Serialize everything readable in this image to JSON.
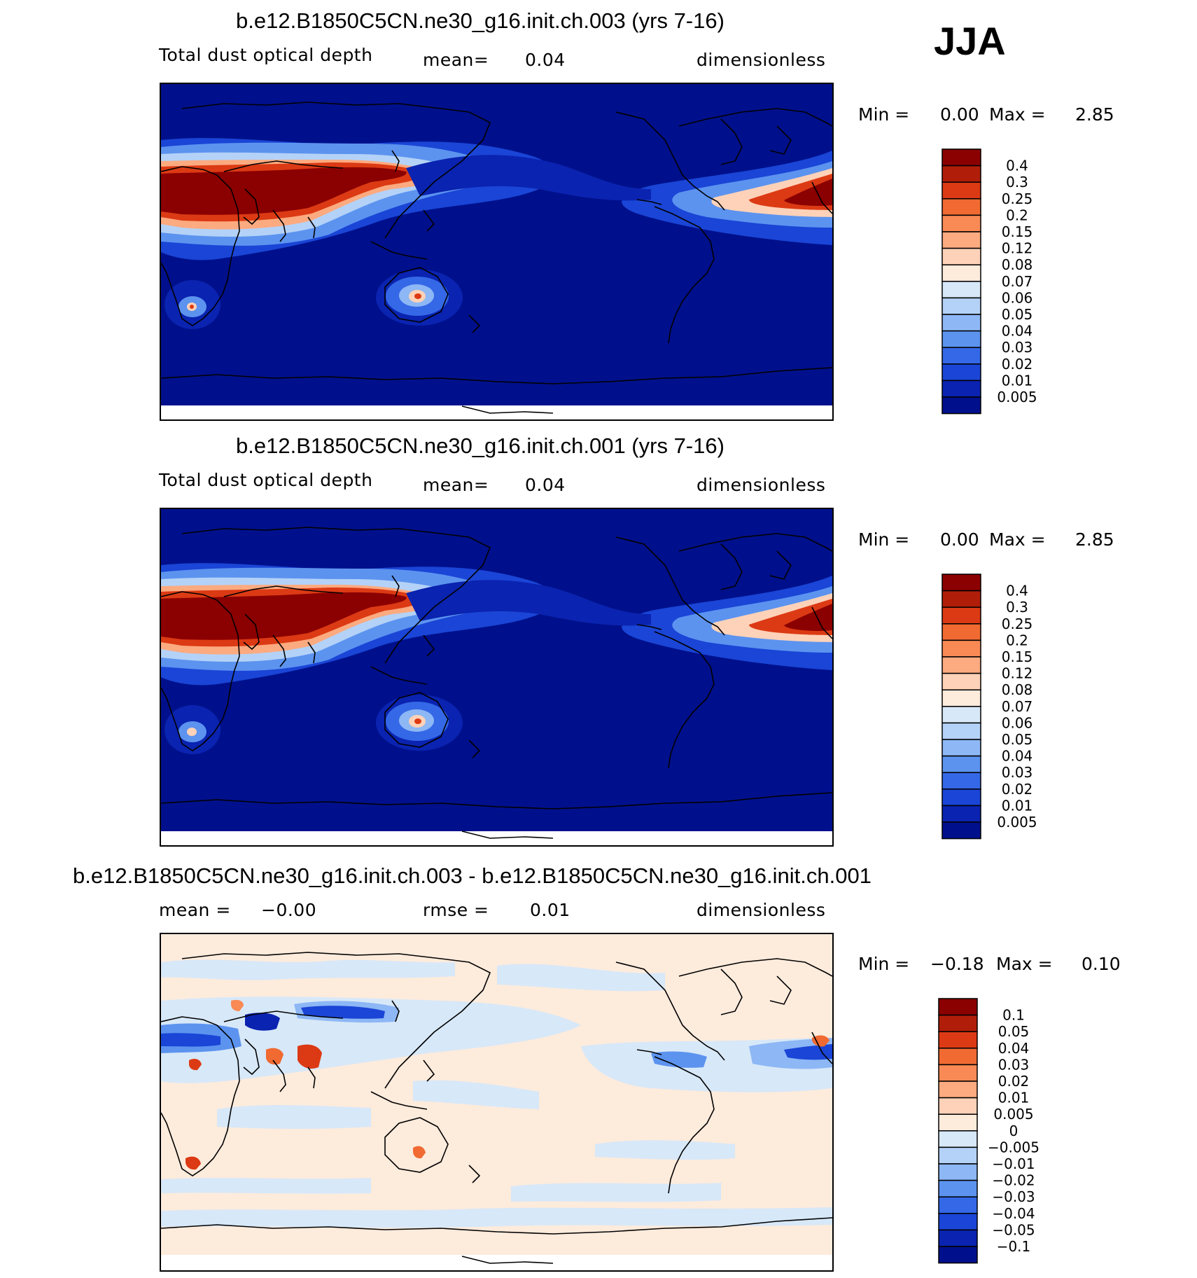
{
  "season": "JJA",
  "panels": [
    {
      "id": "case",
      "title": "b.e12.B1850C5CN.ne30_g16.init.ch.003 (yrs 7-16)",
      "variable": "Total dust optical depth",
      "stat_label": "mean=",
      "stat_value": "0.04",
      "units": "dimensionless",
      "min_label": "Min =",
      "min_value": "0.00",
      "max_label": "Max =",
      "max_value": "2.85"
    },
    {
      "id": "control",
      "title": "b.e12.B1850C5CN.ne30_g16.init.ch.001 (yrs 7-16)",
      "variable": "Total dust optical depth",
      "stat_label": "mean=",
      "stat_value": "0.04",
      "units": "dimensionless",
      "min_label": "Min =",
      "min_value": "0.00",
      "max_label": "Max =",
      "max_value": "2.85"
    },
    {
      "id": "difference",
      "title": "b.e12.B1850C5CN.ne30_g16.init.ch.003 - b.e12.B1850C5CN.ne30_g16.init.ch.001",
      "mean_label": "mean =",
      "mean_value": "−0.00",
      "rmse_label": "rmse =",
      "rmse_value": "0.01",
      "units": "dimensionless",
      "min_label": "Min =",
      "min_value": "−0.18",
      "max_label": "Max =",
      "max_value": "0.10"
    }
  ],
  "colorbars": {
    "abs": {
      "levels": [
        "0.4",
        "0.3",
        "0.25",
        "0.2",
        "0.15",
        "0.12",
        "0.08",
        "0.07",
        "0.06",
        "0.05",
        "0.04",
        "0.03",
        "0.02",
        "0.01",
        "0.005"
      ],
      "colors": [
        "#8b0000",
        "#b01e0a",
        "#dc3a14",
        "#f06a32",
        "#f98a55",
        "#fcaa80",
        "#fdd2b8",
        "#fdebdc",
        "#d7e8f8",
        "#b4d2f7",
        "#8db7f5",
        "#5c93ef",
        "#3468e6",
        "#1a45d6",
        "#0a23b0",
        "#00108c"
      ]
    },
    "diff": {
      "levels": [
        "0.1",
        "0.05",
        "0.04",
        "0.03",
        "0.02",
        "0.01",
        "0.005",
        "0",
        "−0.005",
        "−0.01",
        "−0.02",
        "−0.03",
        "−0.04",
        "−0.05",
        "−0.1"
      ],
      "colors": [
        "#8b0000",
        "#b01e0a",
        "#dc3a14",
        "#f06a32",
        "#f98a55",
        "#fcaa80",
        "#fdd2b8",
        "#fdebdc",
        "#d7e8f8",
        "#b4d2f7",
        "#8db7f5",
        "#5c93ef",
        "#3468e6",
        "#1a45d6",
        "#0a23b0",
        "#00108c"
      ]
    }
  },
  "chart_data": [
    {
      "type": "heatmap",
      "title": "b.e12.B1850C5CN.ne30_g16.init.ch.003 (yrs 7-16)",
      "variable": "Total dust optical depth",
      "units": "dimensionless",
      "mean": 0.04,
      "min": 0.0,
      "max": 2.85,
      "contour_levels": [
        0.005,
        0.01,
        0.02,
        0.03,
        0.04,
        0.05,
        0.06,
        0.07,
        0.08,
        0.12,
        0.15,
        0.2,
        0.25,
        0.3,
        0.4
      ],
      "dust_sources": [
        {
          "lon": 20,
          "lat": 20,
          "value": 0.4
        },
        {
          "lon": 50,
          "lat": 25,
          "value": 0.4
        },
        {
          "lon": 80,
          "lat": 38,
          "value": 0.4
        },
        {
          "lon": 100,
          "lat": 41,
          "value": 0.3
        },
        {
          "lon": 137,
          "lat": -27,
          "value": 0.2
        },
        {
          "lon": 20,
          "lat": -25,
          "value": 0.15
        },
        {
          "lon": -20,
          "lat": 18,
          "value": 0.4
        }
      ]
    },
    {
      "type": "heatmap",
      "title": "b.e12.B1850C5CN.ne30_g16.init.ch.001 (yrs 7-16)",
      "variable": "Total dust optical depth",
      "units": "dimensionless",
      "mean": 0.04,
      "min": 0.0,
      "max": 2.85,
      "contour_levels": [
        0.005,
        0.01,
        0.02,
        0.03,
        0.04,
        0.05,
        0.06,
        0.07,
        0.08,
        0.12,
        0.15,
        0.2,
        0.25,
        0.3,
        0.4
      ],
      "dust_sources": [
        {
          "lon": 20,
          "lat": 20,
          "value": 0.4
        },
        {
          "lon": 50,
          "lat": 25,
          "value": 0.4
        },
        {
          "lon": 80,
          "lat": 38,
          "value": 0.4
        },
        {
          "lon": 100,
          "lat": 41,
          "value": 0.3
        },
        {
          "lon": 137,
          "lat": -27,
          "value": 0.2
        },
        {
          "lon": 20,
          "lat": -25,
          "value": 0.15
        },
        {
          "lon": -20,
          "lat": 18,
          "value": 0.4
        }
      ]
    },
    {
      "type": "heatmap",
      "title": "b.e12.B1850C5CN.ne30_g16.init.ch.003 - b.e12.B1850C5CN.ne30_g16.init.ch.001",
      "units": "dimensionless",
      "mean": -0.0,
      "rmse": 0.01,
      "min": -0.18,
      "max": 0.1,
      "contour_levels": [
        -0.1,
        -0.05,
        -0.04,
        -0.03,
        -0.02,
        -0.01,
        -0.005,
        0,
        0.005,
        0.01,
        0.02,
        0.03,
        0.04,
        0.05,
        0.1
      ]
    }
  ]
}
